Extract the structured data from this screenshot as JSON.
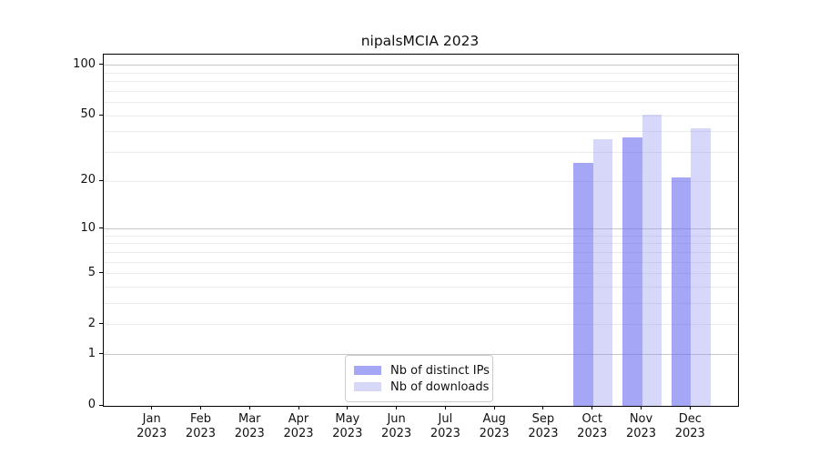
{
  "chart_data": {
    "type": "bar",
    "title": "nipalsMCIA 2023",
    "year_label": "2023",
    "categories": [
      "Jan",
      "Feb",
      "Mar",
      "Apr",
      "May",
      "Jun",
      "Jul",
      "Aug",
      "Sep",
      "Oct",
      "Nov",
      "Dec"
    ],
    "series": [
      {
        "name": "Nb of distinct IPs",
        "color": "#a6a6f7",
        "fill_rgba": "rgba(112,112,242,0.62)",
        "values": [
          null,
          null,
          null,
          null,
          null,
          null,
          null,
          null,
          null,
          26,
          37,
          21
        ]
      },
      {
        "name": "Nb of downloads",
        "color": "#d7d7f7",
        "fill_rgba": "rgba(150,150,240,0.38)",
        "values": [
          null,
          null,
          null,
          null,
          null,
          null,
          null,
          null,
          null,
          36,
          51,
          42
        ]
      }
    ],
    "y_scale": "log1p",
    "ylim": [
      0,
      116
    ],
    "y_tick_values": [
      0,
      1,
      2,
      5,
      10,
      20,
      50,
      100
    ],
    "y_tick_labels": [
      "0",
      "1",
      "2",
      "5",
      "10",
      "20",
      "50",
      "100"
    ],
    "y_major_gridlines": [
      1,
      10,
      100
    ],
    "y_minor_gridlines": [
      2,
      3,
      4,
      5,
      6,
      7,
      8,
      9,
      20,
      30,
      40,
      50,
      60,
      70,
      80,
      90
    ],
    "grid": true,
    "legend_position": "lower center"
  },
  "legend": {
    "items": [
      {
        "label": "Nb of distinct IPs",
        "color": "#a6a6f7"
      },
      {
        "label": "Nb of downloads",
        "color": "#d7d7f7"
      }
    ]
  }
}
